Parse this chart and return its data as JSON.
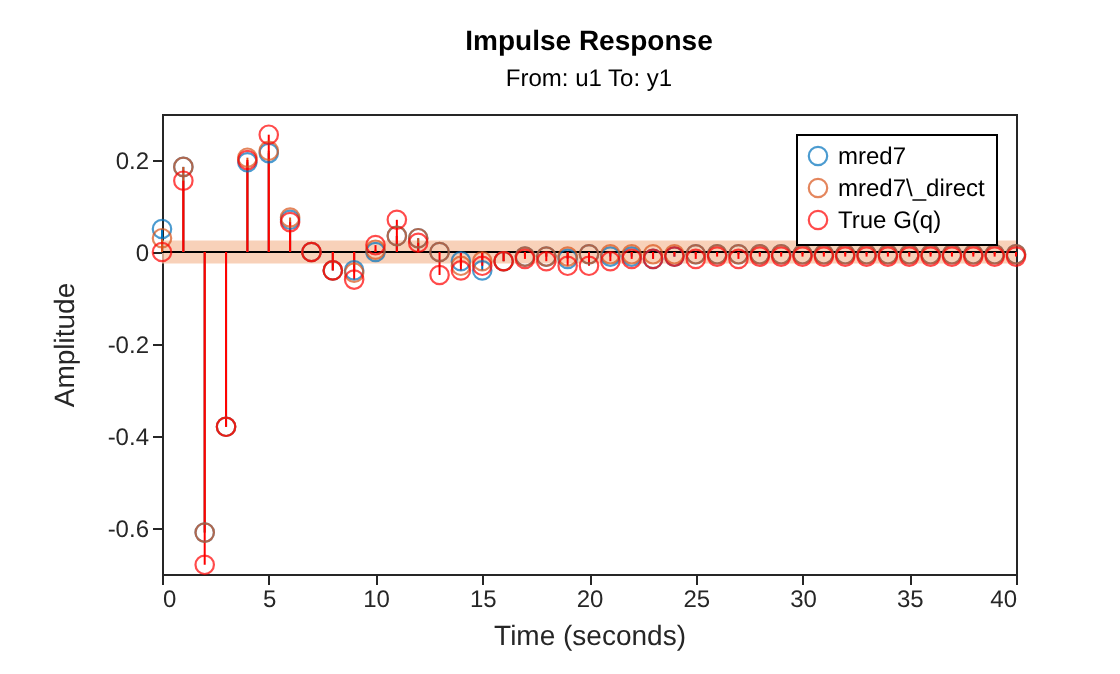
{
  "chart_data": {
    "type": "lollipop",
    "title": "Impulse Response",
    "subtitle": "From: u1  To: y1",
    "xlabel": "Time (seconds)",
    "ylabel": "Amplitude",
    "x": [
      0,
      1,
      2,
      3,
      4,
      5,
      6,
      7,
      8,
      9,
      10,
      11,
      12,
      13,
      14,
      15,
      16,
      17,
      18,
      19,
      20,
      21,
      22,
      23,
      24,
      25,
      26,
      27,
      28,
      29,
      30,
      31,
      32,
      33,
      34,
      35,
      36,
      37,
      38,
      39,
      40
    ],
    "series": [
      {
        "name": "mred7",
        "color": "#0072bd",
        "values": [
          0.05,
          0.185,
          -0.61,
          -0.38,
          0.195,
          0.215,
          0.07,
          0,
          -0.04,
          -0.04,
          0,
          0.035,
          0.03,
          0,
          -0.02,
          -0.04,
          -0.02,
          -0.01,
          -0.01,
          -0.015,
          -0.005,
          -0.01,
          -0.01,
          -0.015,
          -0.01,
          -0.005,
          -0.005,
          -0.005,
          -0.005,
          -0.005,
          -0.005,
          -0.005,
          -0.005,
          -0.005,
          -0.005,
          -0.005,
          -0.005,
          -0.005,
          -0.005,
          -0.005,
          -0.005
        ]
      },
      {
        "name": "mred7\\_direct",
        "color": "#d95319",
        "values": [
          0.03,
          0.185,
          -0.61,
          -0.38,
          0.205,
          0.22,
          0.075,
          0,
          -0.04,
          -0.045,
          0.005,
          0.035,
          0.03,
          0,
          -0.03,
          -0.02,
          -0.02,
          -0.01,
          -0.01,
          -0.01,
          -0.005,
          -0.005,
          -0.005,
          -0.005,
          -0.005,
          -0.005,
          -0.005,
          -0.005,
          -0.005,
          -0.005,
          -0.005,
          -0.005,
          -0.005,
          -0.005,
          -0.005,
          -0.005,
          -0.005,
          -0.005,
          -0.005,
          -0.005,
          -0.005
        ]
      },
      {
        "name": "True G(q)",
        "color": "#ff0000",
        "values": [
          0,
          0.155,
          -0.68,
          -0.38,
          0.2,
          0.255,
          0.065,
          0,
          -0.04,
          -0.06,
          0.015,
          0.07,
          0.02,
          -0.05,
          -0.04,
          -0.03,
          -0.02,
          -0.015,
          -0.02,
          -0.03,
          -0.03,
          -0.02,
          -0.015,
          -0.015,
          -0.01,
          -0.015,
          -0.01,
          -0.015,
          -0.01,
          -0.01,
          -0.01,
          -0.01,
          -0.01,
          -0.01,
          -0.01,
          -0.01,
          -0.01,
          -0.01,
          -0.01,
          -0.01,
          -0.01
        ]
      }
    ],
    "xlim": [
      0,
      40
    ],
    "xticks": [
      0,
      5,
      10,
      15,
      20,
      25,
      30,
      35,
      40
    ],
    "ylim": [
      -0.7,
      0.3
    ],
    "yticks": [
      -0.6,
      -0.4,
      -0.2,
      0,
      0.2
    ],
    "bands": [
      {
        "axis": "y",
        "from": -0.025,
        "to": 0.025,
        "color": "#f6c5a8"
      }
    ],
    "ref_lines": [
      {
        "axis": "y",
        "value": 0,
        "color": "#000000"
      }
    ],
    "marker": "circle",
    "legend": "top right",
    "grid": false
  }
}
